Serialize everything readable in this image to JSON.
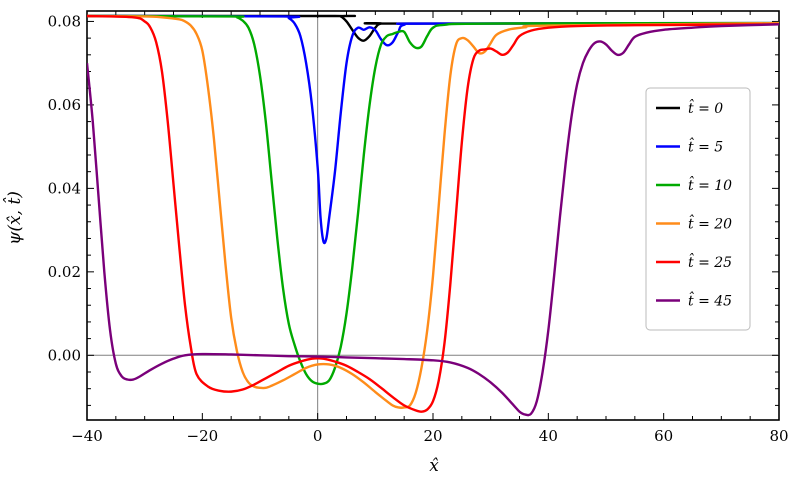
{
  "chart_data": {
    "type": "line",
    "xlabel": "x̂",
    "ylabel": "ψ(x̂, t̂)",
    "xlim": [
      -40,
      80
    ],
    "ylim": [
      -0.0155,
      0.0825
    ],
    "xticks": [
      -40,
      -20,
      0,
      20,
      40,
      60,
      80
    ],
    "xtick_labels": [
      "−40",
      "−20",
      "0",
      "20",
      "40",
      "60",
      "80"
    ],
    "yticks": [
      0.0,
      0.02,
      0.04,
      0.06,
      0.08
    ],
    "ytick_labels": [
      "0.00",
      "0.02",
      "0.04",
      "0.06",
      "0.08"
    ],
    "grid": false,
    "legend_position": "right",
    "series": [
      {
        "name": "t̂ = 0",
        "color": "#000000",
        "points": [
          [
            -40,
            0.0813
          ],
          [
            3,
            0.0813
          ],
          [
            4,
            0.0812
          ],
          [
            5,
            0.08
          ],
          [
            6,
            0.078
          ],
          [
            7,
            0.0761
          ],
          [
            8,
            0.0754
          ],
          [
            9,
            0.0765
          ],
          [
            10,
            0.0785
          ],
          [
            11,
            0.0795
          ],
          [
            14,
            0.0795
          ],
          [
            80,
            0.0795
          ]
        ]
      },
      {
        "name": "t̂ = 5",
        "color": "#0000ff",
        "points": [
          [
            -40,
            0.0813
          ],
          [
            -6,
            0.0812
          ],
          [
            -5,
            0.0808
          ],
          [
            -4,
            0.0795
          ],
          [
            -3,
            0.0765
          ],
          [
            -2,
            0.07
          ],
          [
            -1,
            0.06
          ],
          [
            0,
            0.045
          ],
          [
            0.5,
            0.033
          ],
          [
            1,
            0.0273
          ],
          [
            1.5,
            0.028
          ],
          [
            2,
            0.033
          ],
          [
            3,
            0.044
          ],
          [
            4,
            0.058
          ],
          [
            5,
            0.07
          ],
          [
            6,
            0.0765
          ],
          [
            7,
            0.0785
          ],
          [
            8,
            0.078
          ],
          [
            9,
            0.0786
          ],
          [
            10,
            0.0779
          ],
          [
            11,
            0.0757
          ],
          [
            12,
            0.0743
          ],
          [
            13,
            0.075
          ],
          [
            14,
            0.0775
          ],
          [
            15,
            0.0792
          ],
          [
            20,
            0.0795
          ],
          [
            80,
            0.0796
          ]
        ]
      },
      {
        "name": "t̂ = 10",
        "color": "#00aa00",
        "points": [
          [
            -40,
            0.0813
          ],
          [
            -15,
            0.0812
          ],
          [
            -14,
            0.081
          ],
          [
            -13,
            0.0802
          ],
          [
            -12,
            0.0785
          ],
          [
            -11,
            0.0745
          ],
          [
            -10,
            0.067
          ],
          [
            -9,
            0.056
          ],
          [
            -8,
            0.042
          ],
          [
            -7,
            0.028
          ],
          [
            -6,
            0.016
          ],
          [
            -5,
            0.0075
          ],
          [
            -4,
            0.0025
          ],
          [
            -3,
            -0.0015
          ],
          [
            -2,
            -0.0045
          ],
          [
            -1,
            -0.0062
          ],
          [
            0,
            -0.0068
          ],
          [
            1,
            -0.0068
          ],
          [
            2,
            -0.006
          ],
          [
            3,
            -0.003
          ],
          [
            4,
            0.002
          ],
          [
            5,
            0.01
          ],
          [
            6,
            0.021
          ],
          [
            7,
            0.034
          ],
          [
            8,
            0.048
          ],
          [
            9,
            0.06
          ],
          [
            10,
            0.069
          ],
          [
            11,
            0.0745
          ],
          [
            12,
            0.0765
          ],
          [
            13,
            0.077
          ],
          [
            14,
            0.0775
          ],
          [
            15,
            0.0775
          ],
          [
            16,
            0.075
          ],
          [
            17,
            0.0737
          ],
          [
            18,
            0.074
          ],
          [
            19,
            0.0765
          ],
          [
            20,
            0.0785
          ],
          [
            22,
            0.0792
          ],
          [
            30,
            0.0795
          ],
          [
            80,
            0.0796
          ]
        ]
      },
      {
        "name": "t̂ = 20",
        "color": "#ff8c1a",
        "points": [
          [
            -40,
            0.0813
          ],
          [
            -30,
            0.0812
          ],
          [
            -27,
            0.081
          ],
          [
            -24,
            0.0805
          ],
          [
            -23,
            0.08
          ],
          [
            -22,
            0.079
          ],
          [
            -21,
            0.077
          ],
          [
            -20,
            0.073
          ],
          [
            -19,
            0.064
          ],
          [
            -18,
            0.052
          ],
          [
            -17,
            0.037
          ],
          [
            -16,
            0.022
          ],
          [
            -15,
            0.009
          ],
          [
            -14,
            0.001
          ],
          [
            -13,
            -0.004
          ],
          [
            -12,
            -0.0065
          ],
          [
            -11,
            -0.0075
          ],
          [
            -10,
            -0.0078
          ],
          [
            -9,
            -0.0078
          ],
          [
            -8,
            -0.0073
          ],
          [
            -6,
            -0.006
          ],
          [
            -4,
            -0.0045
          ],
          [
            -2,
            -0.003
          ],
          [
            0,
            -0.0022
          ],
          [
            2,
            -0.0022
          ],
          [
            4,
            -0.003
          ],
          [
            6,
            -0.0045
          ],
          [
            8,
            -0.0065
          ],
          [
            10,
            -0.0088
          ],
          [
            12,
            -0.011
          ],
          [
            13,
            -0.012
          ],
          [
            14,
            -0.0125
          ],
          [
            15,
            -0.0125
          ],
          [
            16,
            -0.012
          ],
          [
            17,
            -0.009
          ],
          [
            18,
            -0.003
          ],
          [
            19,
            0.006
          ],
          [
            20,
            0.019
          ],
          [
            21,
            0.036
          ],
          [
            22,
            0.053
          ],
          [
            23,
            0.067
          ],
          [
            24,
            0.0745
          ],
          [
            25,
            0.076
          ],
          [
            26,
            0.0755
          ],
          [
            27,
            0.074
          ],
          [
            28,
            0.0724
          ],
          [
            29,
            0.0728
          ],
          [
            30,
            0.0748
          ],
          [
            31,
            0.0768
          ],
          [
            33,
            0.078
          ],
          [
            36,
            0.0786
          ],
          [
            40,
            0.079
          ],
          [
            80,
            0.0796
          ]
        ]
      },
      {
        "name": "t̂ = 25",
        "color": "#ff0000",
        "points": [
          [
            -40,
            0.0813
          ],
          [
            -32,
            0.081
          ],
          [
            -30,
            0.08
          ],
          [
            -29,
            0.0785
          ],
          [
            -28,
            0.075
          ],
          [
            -27,
            0.068
          ],
          [
            -26,
            0.056
          ],
          [
            -25,
            0.041
          ],
          [
            -24,
            0.026
          ],
          [
            -23,
            0.012
          ],
          [
            -22,
            0.002
          ],
          [
            -21,
            -0.0045
          ],
          [
            -19,
            -0.0075
          ],
          [
            -17,
            -0.0085
          ],
          [
            -15,
            -0.0087
          ],
          [
            -13,
            -0.0082
          ],
          [
            -11,
            -0.007
          ],
          [
            -9,
            -0.0055
          ],
          [
            -7,
            -0.004
          ],
          [
            -5,
            -0.0025
          ],
          [
            -3,
            -0.0015
          ],
          [
            -1,
            -0.0008
          ],
          [
            1,
            -0.0008
          ],
          [
            3,
            -0.0015
          ],
          [
            5,
            -0.0025
          ],
          [
            7,
            -0.004
          ],
          [
            9,
            -0.0057
          ],
          [
            11,
            -0.0078
          ],
          [
            13,
            -0.01
          ],
          [
            15,
            -0.012
          ],
          [
            17,
            -0.0132
          ],
          [
            18,
            -0.0135
          ],
          [
            19,
            -0.013
          ],
          [
            20,
            -0.011
          ],
          [
            21,
            -0.006
          ],
          [
            22,
            0.003
          ],
          [
            23,
            0.017
          ],
          [
            24,
            0.034
          ],
          [
            25,
            0.051
          ],
          [
            26,
            0.064
          ],
          [
            27,
            0.071
          ],
          [
            28,
            0.073
          ],
          [
            29,
            0.0733
          ],
          [
            30,
            0.0735
          ],
          [
            31,
            0.0728
          ],
          [
            32,
            0.072
          ],
          [
            33,
            0.0726
          ],
          [
            34,
            0.0745
          ],
          [
            35,
            0.0765
          ],
          [
            37,
            0.0778
          ],
          [
            40,
            0.0785
          ],
          [
            45,
            0.0789
          ],
          [
            55,
            0.0791
          ],
          [
            80,
            0.0793
          ]
        ]
      },
      {
        "name": "t̂ = 45",
        "color": "#7a007a",
        "points": [
          [
            -40,
            0.07
          ],
          [
            -39,
            0.056
          ],
          [
            -38,
            0.038
          ],
          [
            -37,
            0.02
          ],
          [
            -36,
            0.006
          ],
          [
            -35,
            -0.002
          ],
          [
            -34,
            -0.005
          ],
          [
            -33,
            -0.0058
          ],
          [
            -32,
            -0.0058
          ],
          [
            -31,
            -0.0052
          ],
          [
            -29,
            -0.0035
          ],
          [
            -27,
            -0.002
          ],
          [
            -25,
            -0.0008
          ],
          [
            -23,
            0.0
          ],
          [
            -20,
            0.0003
          ],
          [
            -15,
            0.0002
          ],
          [
            -10,
            0.0
          ],
          [
            -5,
            -0.0002
          ],
          [
            0,
            -0.0003
          ],
          [
            5,
            -0.0005
          ],
          [
            10,
            -0.0007
          ],
          [
            15,
            -0.0009
          ],
          [
            20,
            -0.0012
          ],
          [
            23,
            -0.0017
          ],
          [
            26,
            -0.003
          ],
          [
            28,
            -0.0045
          ],
          [
            30,
            -0.0065
          ],
          [
            32,
            -0.009
          ],
          [
            34,
            -0.012
          ],
          [
            35,
            -0.0135
          ],
          [
            36,
            -0.0142
          ],
          [
            37,
            -0.014
          ],
          [
            38,
            -0.011
          ],
          [
            39,
            -0.004
          ],
          [
            40,
            0.006
          ],
          [
            41,
            0.019
          ],
          [
            42,
            0.033
          ],
          [
            43,
            0.046
          ],
          [
            44,
            0.057
          ],
          [
            45,
            0.065
          ],
          [
            46,
            0.07
          ],
          [
            47,
            0.073
          ],
          [
            48,
            0.0748
          ],
          [
            49,
            0.0752
          ],
          [
            50,
            0.0745
          ],
          [
            51,
            0.073
          ],
          [
            52,
            0.072
          ],
          [
            53,
            0.0725
          ],
          [
            54,
            0.0745
          ],
          [
            55,
            0.0763
          ],
          [
            57,
            0.0773
          ],
          [
            60,
            0.078
          ],
          [
            65,
            0.0785
          ],
          [
            70,
            0.0789
          ],
          [
            80,
            0.0793
          ]
        ]
      }
    ]
  }
}
